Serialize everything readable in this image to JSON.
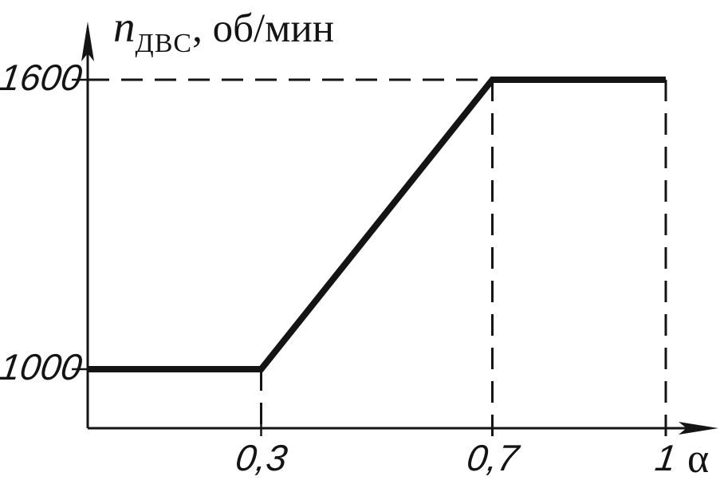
{
  "figure": {
    "background": "#ffffff",
    "ink": "#141414"
  },
  "chart_data": {
    "type": "line",
    "ylabel": "n_ДВС, об/мин",
    "ylabel_var": "n",
    "ylabel_sub": "ДВС",
    "ylabel_unit": ", об/мин",
    "xlabel": "α",
    "x": [
      0,
      0.3,
      0.7,
      1
    ],
    "y": [
      1000,
      1000,
      1600,
      1600
    ],
    "xlim": [
      0,
      1.05
    ],
    "ylim": [
      800,
      1750
    ],
    "x_ticks": [
      {
        "value": 0.3,
        "label": "0,3"
      },
      {
        "value": 0.7,
        "label": "0,7"
      },
      {
        "value": 1,
        "label": "1"
      }
    ],
    "y_ticks": [
      {
        "value": 1600,
        "label": "1600"
      },
      {
        "value": 1000,
        "label": "1000"
      }
    ],
    "guides": [
      {
        "orient": "h",
        "at": 1600,
        "from_x": 0,
        "to_x": 0.7
      },
      {
        "orient": "v",
        "at": 0.3,
        "from_y": 1000
      },
      {
        "orient": "v",
        "at": 0.7,
        "from_y": 1600
      },
      {
        "orient": "v",
        "at": 1,
        "from_y": 1600
      }
    ],
    "grid": false,
    "legend": "none",
    "line_color": "#141414",
    "line_style": "solid-thick",
    "guide_style": "dashed"
  }
}
